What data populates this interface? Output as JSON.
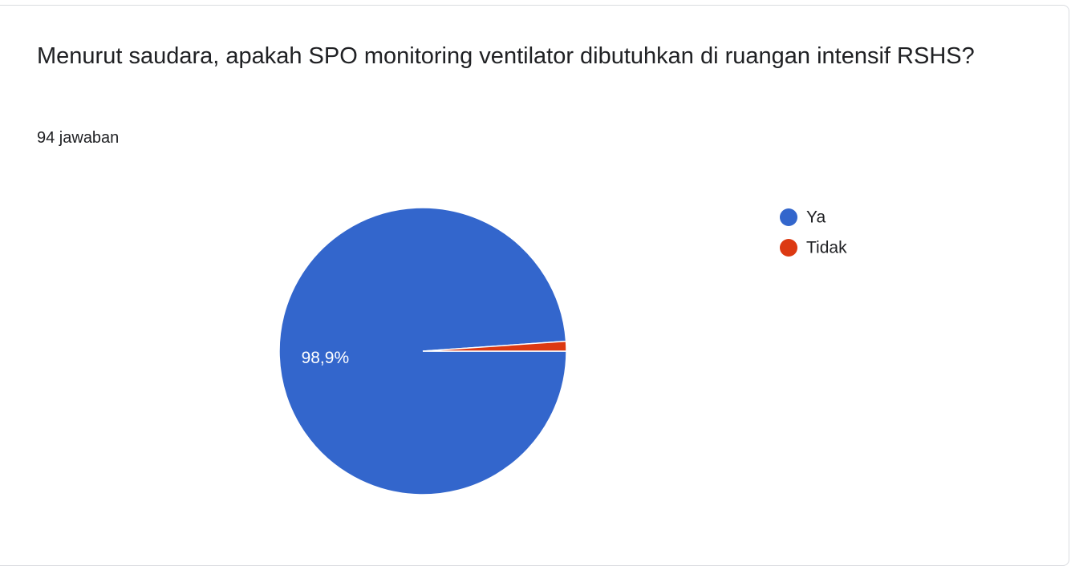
{
  "chart_data": {
    "type": "pie",
    "title": "Menurut saudara, apakah SPO monitoring ventilator dibutuhkan di ruangan intensif RSHS?",
    "subtitle": "94 jawaban",
    "categories": [
      "Ya",
      "Tidak"
    ],
    "values": [
      98.9,
      1.1
    ],
    "value_labels": [
      "98,9%",
      null
    ],
    "colors": [
      "#3366cc",
      "#dc3912"
    ],
    "legend": "right"
  }
}
